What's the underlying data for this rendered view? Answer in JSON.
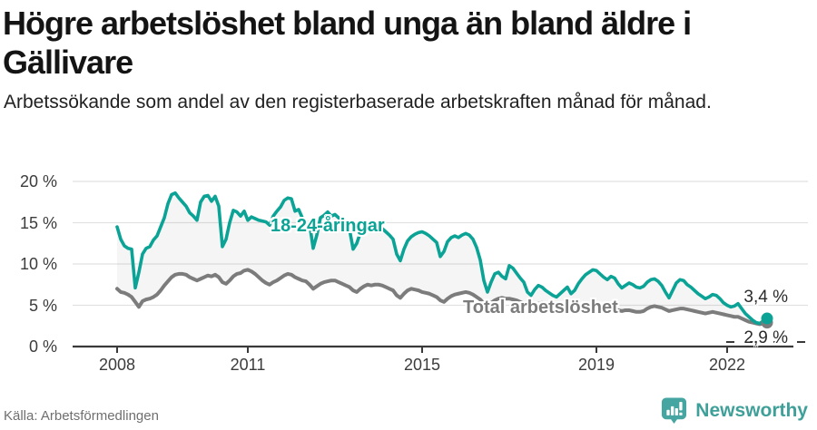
{
  "chart_data": {
    "type": "line",
    "title": "Högre arbetslöshet bland unga än bland äldre i Gällivare",
    "subtitle": "Arbetssökande som andel av den registerbaserade arbetskraften månad för månad.",
    "x_unit": "month",
    "x_start": "2008-01",
    "x_end": "2022-12",
    "x_tick_labels": [
      "2008",
      "2011",
      "2015",
      "2019",
      "2022"
    ],
    "x_tick_month_index": [
      0,
      36,
      84,
      132,
      168
    ],
    "y_tick_values": [
      20,
      15,
      10,
      5,
      0
    ],
    "y_tick_labels": [
      "20 %",
      "15 %",
      "10 %",
      "5 %",
      "0 %"
    ],
    "ylim": [
      0,
      20
    ],
    "grid": true,
    "fill_between_series": true,
    "series": [
      {
        "name": "18-24-åringar",
        "color": "#0aa396",
        "end_label": "3,4 %",
        "end_value": 3.4,
        "values": [
          14.5,
          13.0,
          12.2,
          11.9,
          11.8,
          7.1,
          9.0,
          11.2,
          11.9,
          12.1,
          12.9,
          13.4,
          14.5,
          15.6,
          17.3,
          18.4,
          18.6,
          18.0,
          17.5,
          17.0,
          16.2,
          15.8,
          15.3,
          17.5,
          18.2,
          18.3,
          17.6,
          18.2,
          17.0,
          12.1,
          13.0,
          15.0,
          16.5,
          16.3,
          15.8,
          16.4,
          15.3,
          15.7,
          15.5,
          15.3,
          15.2,
          15.1,
          14.7,
          15.8,
          16.4,
          16.9,
          17.7,
          18.0,
          17.9,
          16.4,
          16.6,
          15.6,
          15.2,
          14.9,
          11.9,
          13.5,
          15.6,
          15.9,
          16.3,
          15.8,
          16.0,
          15.6,
          15.2,
          14.8,
          14.2,
          11.8,
          12.5,
          13.8,
          14.5,
          14.7,
          14.4,
          14.6,
          14.6,
          14.3,
          13.9,
          13.5,
          13.0,
          11.2,
          10.4,
          11.8,
          12.8,
          13.3,
          13.6,
          13.8,
          13.9,
          13.7,
          13.4,
          13.0,
          12.6,
          10.9,
          11.5,
          12.7,
          13.2,
          13.4,
          13.2,
          13.5,
          13.7,
          13.5,
          13.0,
          12.0,
          10.5,
          8.0,
          6.6,
          7.8,
          8.8,
          9.0,
          8.5,
          8.2,
          9.8,
          9.5,
          8.9,
          8.3,
          7.8,
          6.6,
          6.2,
          6.9,
          7.4,
          7.2,
          6.8,
          6.5,
          6.2,
          6.0,
          6.4,
          6.8,
          7.2,
          6.4,
          6.8,
          7.6,
          8.2,
          8.7,
          9.0,
          9.3,
          9.2,
          8.8,
          8.4,
          8.1,
          8.5,
          8.3,
          7.6,
          7.1,
          7.4,
          7.7,
          7.5,
          7.2,
          7.1,
          7.3,
          7.8,
          8.1,
          8.2,
          7.9,
          7.4,
          6.6,
          5.9,
          6.8,
          7.7,
          8.1,
          8.0,
          7.5,
          7.2,
          6.8,
          6.4,
          6.1,
          5.8,
          6.0,
          6.3,
          6.2,
          5.8,
          5.3,
          5.0,
          4.8,
          4.9,
          5.2,
          4.6,
          4.0,
          3.6,
          3.2,
          2.9,
          2.8,
          3.1,
          3.4
        ]
      },
      {
        "name": "Total arbetslöshet",
        "color": "#7c7c7c",
        "end_label": "2,9 %",
        "end_value": 2.9,
        "values": [
          7.0,
          6.6,
          6.5,
          6.3,
          6.0,
          5.4,
          4.8,
          5.5,
          5.7,
          5.8,
          6.0,
          6.3,
          6.8,
          7.4,
          7.9,
          8.4,
          8.7,
          8.8,
          8.8,
          8.7,
          8.4,
          8.2,
          8.0,
          8.2,
          8.4,
          8.6,
          8.5,
          8.7,
          8.4,
          7.8,
          7.6,
          8.0,
          8.5,
          8.8,
          8.9,
          9.2,
          9.3,
          9.1,
          8.8,
          8.4,
          8.0,
          7.7,
          7.5,
          7.8,
          8.0,
          8.3,
          8.6,
          8.8,
          8.7,
          8.4,
          8.2,
          8.0,
          7.9,
          7.5,
          7.0,
          7.3,
          7.6,
          7.8,
          7.9,
          8.0,
          8.0,
          7.8,
          7.6,
          7.4,
          7.2,
          6.8,
          6.6,
          7.0,
          7.3,
          7.5,
          7.4,
          7.5,
          7.5,
          7.4,
          7.2,
          7.0,
          6.8,
          6.2,
          5.9,
          6.4,
          6.8,
          7.0,
          6.9,
          6.8,
          6.6,
          6.5,
          6.4,
          6.2,
          6.0,
          5.6,
          5.4,
          5.8,
          6.1,
          6.3,
          6.4,
          6.5,
          6.6,
          6.5,
          6.3,
          6.0,
          5.7,
          5.2,
          5.0,
          5.3,
          5.6,
          5.8,
          5.9,
          5.8,
          5.8,
          5.7,
          5.6,
          5.4,
          5.2,
          4.9,
          4.7,
          5.0,
          5.2,
          5.3,
          5.2,
          5.1,
          5.0,
          4.9,
          4.8,
          4.7,
          4.8,
          4.6,
          4.5,
          4.6,
          4.8,
          4.9,
          5.0,
          5.1,
          5.0,
          4.9,
          4.7,
          4.6,
          4.6,
          4.5,
          4.4,
          4.3,
          4.4,
          4.4,
          4.3,
          4.2,
          4.2,
          4.3,
          4.6,
          4.8,
          4.9,
          4.8,
          4.7,
          4.5,
          4.3,
          4.4,
          4.5,
          4.6,
          4.6,
          4.5,
          4.4,
          4.3,
          4.2,
          4.1,
          4.0,
          4.1,
          4.2,
          4.1,
          4.0,
          3.9,
          3.8,
          3.7,
          3.6,
          3.6,
          3.4,
          3.2,
          3.0,
          2.9,
          2.8,
          2.7,
          2.8,
          2.9
        ]
      }
    ]
  },
  "footer": {
    "source": "Källa: Arbetsförmedlingen",
    "brand": "Newsworthy"
  },
  "colors": {
    "accent_teal": "#0aa396",
    "line_gray": "#7c7c7c",
    "brand_teal": "#3f9f99",
    "grid": "#e1e1e1",
    "axis": "#3a3a3a"
  }
}
